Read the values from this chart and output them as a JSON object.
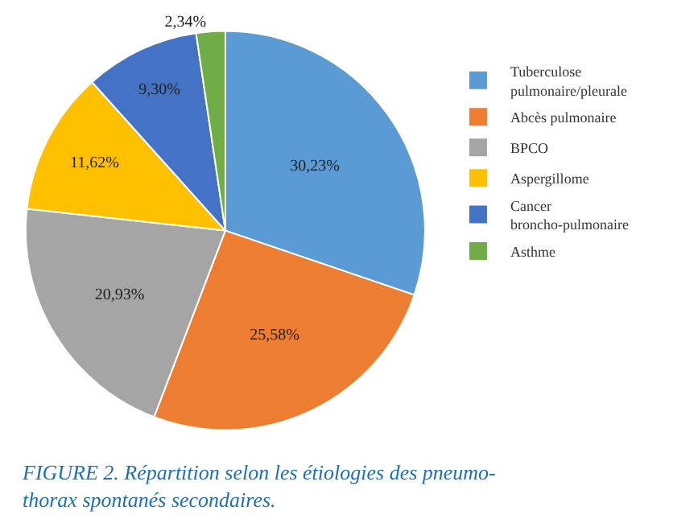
{
  "chart_data": {
    "type": "pie",
    "categories": [
      "Tuberculose pulmonaire/pleurale",
      "Abcès pulmonaire",
      "BPCO",
      "Aspergillome",
      "Cancer broncho-pulmonaire",
      "Asthme"
    ],
    "values": [
      30.23,
      25.58,
      20.93,
      11.62,
      9.3,
      2.34
    ],
    "value_labels": [
      "30,23%",
      "25,58%",
      "20,93%",
      "11,62%",
      "9,30%",
      "2,34%"
    ],
    "colors": [
      "#5b9bd5",
      "#ed7d31",
      "#a5a5a5",
      "#ffc000",
      "#4472c4",
      "#70ad47"
    ],
    "legend": "right",
    "annotations": [
      "FIGURE 2. Répartition selon les étiologies des pneumo-\nthorax spontanés secondaires."
    ]
  }
}
